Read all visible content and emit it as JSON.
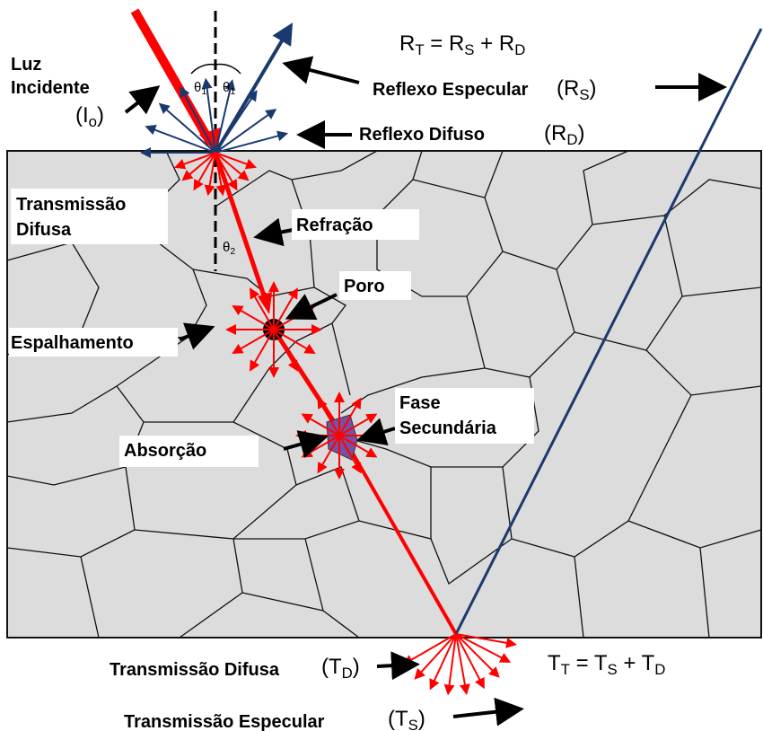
{
  "reflection_equation": [
    "R",
    "T",
    " = R",
    "S",
    " + R",
    "D"
  ],
  "transmission_equation": [
    "T",
    "T",
    " = T",
    "S",
    " + T",
    "D"
  ],
  "incident_light": {
    "line1": "Luz",
    "line2": "Incidente",
    "symbol": [
      "(I",
      "o",
      ")"
    ]
  },
  "angles": {
    "incident": [
      "θ",
      "1"
    ],
    "reflected": [
      "θ",
      "1"
    ],
    "refracted": [
      "θ",
      "2"
    ]
  },
  "specular_reflection": {
    "label": "Reflexo Especular",
    "symbol": [
      "(R",
      "S",
      ")"
    ]
  },
  "diffuse_reflection": {
    "label": "Reflexo Difuso",
    "symbol": [
      "(R",
      "D",
      ")"
    ]
  },
  "diffuse_transmission_top": {
    "line1": "Transmissão",
    "line2": "Difusa"
  },
  "refraction": "Refração",
  "pore": "Poro",
  "scattering": "Espalhamento",
  "secondary_phase": {
    "line1": "Fase",
    "line2": "Secundária"
  },
  "absorption": "Absorção",
  "diffuse_transmission": {
    "label": "Transmissão Difusa",
    "symbol": [
      "(T",
      "D",
      ")"
    ]
  },
  "specular_transmission": {
    "label": "Transmissão Especular",
    "symbol": [
      "(T",
      "S",
      ")"
    ]
  }
}
